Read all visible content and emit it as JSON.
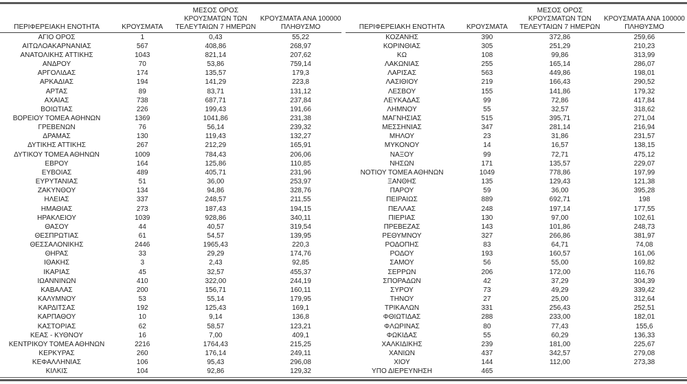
{
  "colors": {
    "rule": "#595959",
    "text": "#1f1f1f"
  },
  "table": {
    "header": {
      "col_region": [
        "ΠΕΡΙΦΕΡΕΙΑΚΗ ΕΝΟΤΗΤΑ"
      ],
      "col_cases": [
        "ΚΡΟΥΣΜΑΤΑ"
      ],
      "col_avg7": [
        "ΜΕΣΟΣ ΟΡΟΣ",
        "ΚΡΟΥΣΜΑΤΩΝ ΤΩΝ",
        "ΤΕΛΕΥΤΑΙΩΝ 7 ΗΜΕΡΩΝ"
      ],
      "col_per100k": [
        "ΚΡΟΥΣΜΑΤΑ ΑΝΑ 100000",
        "ΠΛΗΘΥΣΜΟ"
      ]
    },
    "left_rows": [
      [
        "ΑΓΙΟ ΟΡΟΣ",
        "1",
        "0,43",
        "55,22"
      ],
      [
        "ΑΙΤΩΛΟΑΚΑΡΝΑΝΙΑΣ",
        "567",
        "408,86",
        "268,97"
      ],
      [
        "ΑΝΑΤΟΛΙΚΗΣ ΑΤΤΙΚΗΣ",
        "1043",
        "821,14",
        "207,62"
      ],
      [
        "ΑΝΔΡΟΥ",
        "70",
        "53,86",
        "759,14"
      ],
      [
        "ΑΡΓΟΛΙΔΑΣ",
        "174",
        "135,57",
        "179,3"
      ],
      [
        "ΑΡΚΑΔΙΑΣ",
        "194",
        "141,29",
        "223,8"
      ],
      [
        "ΑΡΤΑΣ",
        "89",
        "83,71",
        "131,12"
      ],
      [
        "ΑΧΑΪΑΣ",
        "738",
        "687,71",
        "237,84"
      ],
      [
        "ΒΟΙΩΤΙΑΣ",
        "226",
        "199,43",
        "191,66"
      ],
      [
        "ΒΟΡΕΙΟΥ ΤΟΜΕΑ ΑΘΗΝΩΝ",
        "1369",
        "1041,86",
        "231,38"
      ],
      [
        "ΓΡΕΒΕΝΩΝ",
        "76",
        "56,14",
        "239,32"
      ],
      [
        "ΔΡΑΜΑΣ",
        "130",
        "119,43",
        "132,27"
      ],
      [
        "ΔΥΤΙΚΗΣ ΑΤΤΙΚΗΣ",
        "267",
        "212,29",
        "165,91"
      ],
      [
        "ΔΥΤΙΚΟΥ ΤΟΜΕΑ ΑΘΗΝΩΝ",
        "1009",
        "784,43",
        "206,06"
      ],
      [
        "ΕΒΡΟΥ",
        "164",
        "125,86",
        "110,85"
      ],
      [
        "ΕΥΒΟΙΑΣ",
        "489",
        "405,71",
        "231,96"
      ],
      [
        "ΕΥΡΥΤΑΝΙΑΣ",
        "51",
        "36,00",
        "253,97"
      ],
      [
        "ΖΑΚΥΝΘΟΥ",
        "134",
        "94,86",
        "328,76"
      ],
      [
        "ΗΛΕΙΑΣ",
        "337",
        "248,57",
        "211,55"
      ],
      [
        "ΗΜΑΘΙΑΣ",
        "273",
        "187,43",
        "194,15"
      ],
      [
        "ΗΡΑΚΛΕΙΟΥ",
        "1039",
        "928,86",
        "340,11"
      ],
      [
        "ΘΑΣΟΥ",
        "44",
        "40,57",
        "319,54"
      ],
      [
        "ΘΕΣΠΡΩΤΙΑΣ",
        "61",
        "54,57",
        "139,95"
      ],
      [
        "ΘΕΣΣΑΛΟΝΙΚΗΣ",
        "2446",
        "1965,43",
        "220,3"
      ],
      [
        "ΘΗΡΑΣ",
        "33",
        "29,29",
        "174,76"
      ],
      [
        "ΙΘΑΚΗΣ",
        "3",
        "2,43",
        "92,85"
      ],
      [
        "ΙΚΑΡΙΑΣ",
        "45",
        "32,57",
        "455,37"
      ],
      [
        "ΙΩΑΝΝΙΝΩΝ",
        "410",
        "322,00",
        "244,19"
      ],
      [
        "ΚΑΒΑΛΑΣ",
        "200",
        "156,71",
        "160,11"
      ],
      [
        "ΚΑΛΥΜΝΟΥ",
        "53",
        "55,14",
        "179,95"
      ],
      [
        "ΚΑΡΔΙΤΣΑΣ",
        "192",
        "125,43",
        "169,1"
      ],
      [
        "ΚΑΡΠΑΘΟΥ",
        "10",
        "9,14",
        "136,8"
      ],
      [
        "ΚΑΣΤΟΡΙΑΣ",
        "62",
        "58,57",
        "123,21"
      ],
      [
        "ΚΕΑΣ - ΚΥΘΝΟΥ",
        "16",
        "7,00",
        "409,1"
      ],
      [
        "ΚΕΝΤΡΙΚΟΥ ΤΟΜΕΑ ΑΘΗΝΩΝ",
        "2216",
        "1764,43",
        "215,25"
      ],
      [
        "ΚΕΡΚΥΡΑΣ",
        "260",
        "176,14",
        "249,11"
      ],
      [
        "ΚΕΦΑΛΛΗΝΙΑΣ",
        "106",
        "95,43",
        "296,08"
      ],
      [
        "ΚΙΛΚΙΣ",
        "104",
        "92,86",
        "129,32"
      ]
    ],
    "right_rows": [
      [
        "ΚΟΖΑΝΗΣ",
        "390",
        "372,86",
        "259,66"
      ],
      [
        "ΚΟΡΙΝΘΙΑΣ",
        "305",
        "251,29",
        "210,23"
      ],
      [
        "ΚΩ",
        "108",
        "99,86",
        "313,99"
      ],
      [
        "ΛΑΚΩΝΙΑΣ",
        "255",
        "165,14",
        "286,07"
      ],
      [
        "ΛΑΡΙΣΑΣ",
        "563",
        "449,86",
        "198,01"
      ],
      [
        "ΛΑΣΙΘΙΟΥ",
        "219",
        "166,43",
        "290,52"
      ],
      [
        "ΛΕΣΒΟΥ",
        "155",
        "141,86",
        "179,32"
      ],
      [
        "ΛΕΥΚΑΔΑΣ",
        "99",
        "72,86",
        "417,84"
      ],
      [
        "ΛΗΜΝΟΥ",
        "55",
        "32,57",
        "318,62"
      ],
      [
        "ΜΑΓΝΗΣΙΑΣ",
        "515",
        "395,71",
        "271,04"
      ],
      [
        "ΜΕΣΣΗΝΙΑΣ",
        "347",
        "281,14",
        "216,94"
      ],
      [
        "ΜΗΛΟΥ",
        "23",
        "31,86",
        "231,57"
      ],
      [
        "ΜΥΚΟΝΟΥ",
        "14",
        "16,57",
        "138,15"
      ],
      [
        "ΝΑΞΟΥ",
        "99",
        "72,71",
        "475,12"
      ],
      [
        "ΝΗΣΩΝ",
        "171",
        "135,57",
        "229,07"
      ],
      [
        "ΝΟΤΙΟΥ ΤΟΜΕΑ ΑΘΗΝΩΝ",
        "1049",
        "778,86",
        "197,99"
      ],
      [
        "ΞΑΝΘΗΣ",
        "135",
        "129,43",
        "121,38"
      ],
      [
        "ΠΑΡΟΥ",
        "59",
        "36,00",
        "395,28"
      ],
      [
        "ΠΕΙΡΑΙΩΣ",
        "889",
        "692,71",
        "198"
      ],
      [
        "ΠΕΛΛΑΣ",
        "248",
        "197,14",
        "177,55"
      ],
      [
        "ΠΙΕΡΙΑΣ",
        "130",
        "97,00",
        "102,61"
      ],
      [
        "ΠΡΕΒΕΖΑΣ",
        "143",
        "101,86",
        "248,73"
      ],
      [
        "ΡΕΘΥΜΝΟΥ",
        "327",
        "266,86",
        "381,97"
      ],
      [
        "ΡΟΔΟΠΗΣ",
        "83",
        "64,71",
        "74,08"
      ],
      [
        "ΡΟΔΟΥ",
        "193",
        "160,57",
        "161,06"
      ],
      [
        "ΣΑΜΟΥ",
        "56",
        "55,00",
        "169,82"
      ],
      [
        "ΣΕΡΡΩΝ",
        "206",
        "172,00",
        "116,76"
      ],
      [
        "ΣΠΟΡΑΔΩΝ",
        "42",
        "37,29",
        "304,39"
      ],
      [
        "ΣΥΡΟΥ",
        "73",
        "49,29",
        "339,42"
      ],
      [
        "ΤΗΝΟΥ",
        "27",
        "25,00",
        "312,64"
      ],
      [
        "ΤΡΙΚΑΛΩΝ",
        "331",
        "256,43",
        "252,51"
      ],
      [
        "ΦΘΙΩΤΙΔΑΣ",
        "288",
        "233,00",
        "182,01"
      ],
      [
        "ΦΛΩΡΙΝΑΣ",
        "80",
        "77,43",
        "155,6"
      ],
      [
        "ΦΩΚΙΔΑΣ",
        "55",
        "60,29",
        "136,33"
      ],
      [
        "ΧΑΛΚΙΔΙΚΗΣ",
        "239",
        "181,00",
        "225,67"
      ],
      [
        "ΧΑΝΙΩΝ",
        "437",
        "342,57",
        "279,08"
      ],
      [
        "ΧΙΟΥ",
        "144",
        "112,00",
        "273,38"
      ],
      [
        "ΥΠΟ ΔΙΕΡΕΥΝΗΣΗ",
        "465",
        "",
        ""
      ]
    ]
  }
}
